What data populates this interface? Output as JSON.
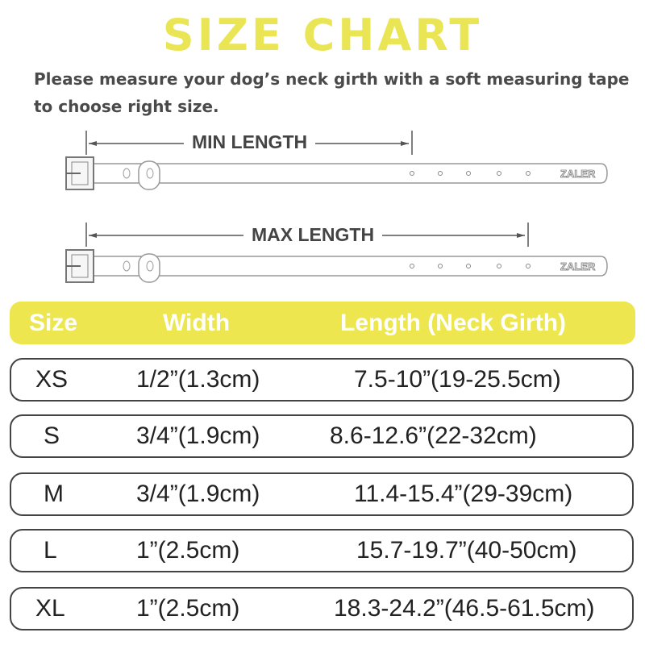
{
  "title": "SIZE CHART",
  "intro": [
    "Please  measure your  dog’s neck girth with a soft measuring tape",
    "to choose right size."
  ],
  "diagram": {
    "min_label": "MIN LENGTH",
    "max_label": "MAX LENGTH",
    "brand": "ZALER"
  },
  "table": {
    "headers": [
      "Size",
      "Width",
      "Length (Neck Girth)"
    ],
    "rows": [
      {
        "size": "XS",
        "width": "1/2”(1.3cm)",
        "length": "7.5-10”(19-25.5cm)"
      },
      {
        "size": "S",
        "width": "3/4”(1.9cm)",
        "length": "8.6-12.6”(22-32cm)"
      },
      {
        "size": "M",
        "width": "3/4”(1.9cm)",
        "length": "11.4-15.4”(29-39cm)"
      },
      {
        "size": "L",
        "width": "1”(2.5cm)",
        "length": "15.7-19.7”(40-50cm)"
      },
      {
        "size": "XL",
        "width": "1”(2.5cm)",
        "length": "18.3-24.2”(46.5-61.5cm)"
      }
    ]
  },
  "colors": {
    "accent": "#ede64f",
    "text": "#444444"
  }
}
